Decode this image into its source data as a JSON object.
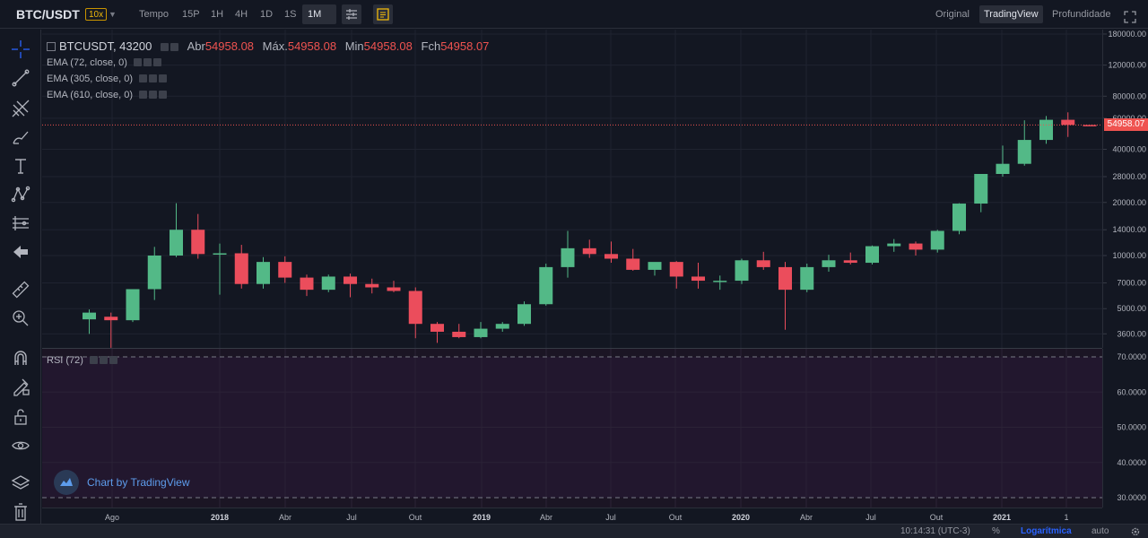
{
  "topbar": {
    "pair": "BTC/USDT",
    "leverage": "10x",
    "intervals": [
      "Tempo",
      "15P",
      "1H",
      "4H",
      "1D",
      "1S",
      "1M"
    ],
    "active_interval": "1M",
    "view_tabs": [
      "Original",
      "TradingView",
      "Profundidade"
    ],
    "active_view": "TradingView"
  },
  "legend": {
    "symbol": "BTCUSDT, 43200",
    "open_label": "Abr",
    "open_value": "54958.08",
    "high_label": "Máx.",
    "high_value": "54958.08",
    "low_label": "Min",
    "low_value": "54958.08",
    "close_label": "Fch",
    "close_value": "54958.07",
    "ema1": "EMA (72, close, 0)",
    "ema2": "EMA (305, close, 0)",
    "ema3": "EMA (610, close, 0)",
    "rsi": "RSI (72)"
  },
  "watermark": "Chart by TradingView",
  "last_price": "54958.07",
  "status": {
    "time": "10:14:31 (UTC-3)",
    "percent": "%",
    "log": "Logarítmica",
    "auto": "auto"
  },
  "colors": {
    "up": "#53b987",
    "down": "#eb4d5c",
    "accent": "#2962ff"
  },
  "chart_data": {
    "type": "candlestick",
    "scale": "log",
    "price_ticks": [
      "180000.00",
      "120000.00",
      "80000.00",
      "60000.00",
      "40000.00",
      "28000.00",
      "20000.00",
      "14000.00",
      "10000.00",
      "7000.00",
      "5000.00",
      "3600.00"
    ],
    "rsi_ticks": [
      "70.0000",
      "60.0000",
      "50.0000",
      "40.0000",
      "30.0000"
    ],
    "time_labels": [
      "Ago",
      "2018",
      "Abr",
      "Jul",
      "Out",
      "2019",
      "Abr",
      "Jul",
      "Out",
      "2020",
      "Abr",
      "Jul",
      "Out",
      "2021",
      "1"
    ],
    "bold_time_labels": [
      "2018",
      "2019",
      "2020",
      "2021"
    ],
    "candles": [
      {
        "o": 4350,
        "h": 4950,
        "l": 3600,
        "c": 4750
      },
      {
        "o": 4500,
        "h": 4750,
        "l": 3000,
        "c": 4300
      },
      {
        "o": 4300,
        "h": 6450,
        "l": 4200,
        "c": 6450
      },
      {
        "o": 6450,
        "h": 11200,
        "l": 5600,
        "c": 10000
      },
      {
        "o": 10000,
        "h": 19800,
        "l": 9800,
        "c": 14000
      },
      {
        "o": 14000,
        "h": 17200,
        "l": 9600,
        "c": 10200
      },
      {
        "o": 10200,
        "h": 11700,
        "l": 6000,
        "c": 10300
      },
      {
        "o": 10300,
        "h": 11500,
        "l": 6500,
        "c": 6900
      },
      {
        "o": 6900,
        "h": 9800,
        "l": 6500,
        "c": 9200
      },
      {
        "o": 9200,
        "h": 9900,
        "l": 7000,
        "c": 7500
      },
      {
        "o": 7500,
        "h": 7800,
        "l": 5900,
        "c": 6400
      },
      {
        "o": 6400,
        "h": 7800,
        "l": 6200,
        "c": 7600
      },
      {
        "o": 7600,
        "h": 7900,
        "l": 5800,
        "c": 6900
      },
      {
        "o": 6900,
        "h": 7400,
        "l": 6100,
        "c": 6600
      },
      {
        "o": 6600,
        "h": 7200,
        "l": 6200,
        "c": 6300
      },
      {
        "o": 6300,
        "h": 6600,
        "l": 3400,
        "c": 4100
      },
      {
        "o": 4100,
        "h": 4200,
        "l": 3200,
        "c": 3700
      },
      {
        "o": 3700,
        "h": 4100,
        "l": 3400,
        "c": 3450
      },
      {
        "o": 3450,
        "h": 4200,
        "l": 3400,
        "c": 3850
      },
      {
        "o": 3850,
        "h": 4200,
        "l": 3700,
        "c": 4100
      },
      {
        "o": 4100,
        "h": 5500,
        "l": 4000,
        "c": 5300
      },
      {
        "o": 5300,
        "h": 9000,
        "l": 5200,
        "c": 8600
      },
      {
        "o": 8600,
        "h": 13800,
        "l": 7500,
        "c": 11000
      },
      {
        "o": 11000,
        "h": 12300,
        "l": 9700,
        "c": 10200
      },
      {
        "o": 10200,
        "h": 12000,
        "l": 9100,
        "c": 9600
      },
      {
        "o": 9600,
        "h": 10900,
        "l": 8200,
        "c": 8300
      },
      {
        "o": 8300,
        "h": 9100,
        "l": 7700,
        "c": 9200
      },
      {
        "o": 9200,
        "h": 9300,
        "l": 6500,
        "c": 7600
      },
      {
        "o": 7600,
        "h": 9100,
        "l": 6500,
        "c": 7200
      },
      {
        "o": 7200,
        "h": 7700,
        "l": 6400,
        "c": 7200
      },
      {
        "o": 7200,
        "h": 9600,
        "l": 6900,
        "c": 9400
      },
      {
        "o": 9400,
        "h": 10500,
        "l": 8300,
        "c": 8600
      },
      {
        "o": 8600,
        "h": 9200,
        "l": 3800,
        "c": 6400
      },
      {
        "o": 6400,
        "h": 9000,
        "l": 6200,
        "c": 8600
      },
      {
        "o": 8600,
        "h": 10100,
        "l": 8100,
        "c": 9400
      },
      {
        "o": 9400,
        "h": 10400,
        "l": 8900,
        "c": 9100
      },
      {
        "o": 9100,
        "h": 11400,
        "l": 8900,
        "c": 11300
      },
      {
        "o": 11300,
        "h": 12400,
        "l": 10500,
        "c": 11700
      },
      {
        "o": 11700,
        "h": 12000,
        "l": 10000,
        "c": 10800
      },
      {
        "o": 10800,
        "h": 14000,
        "l": 10400,
        "c": 13800
      },
      {
        "o": 13800,
        "h": 19800,
        "l": 13200,
        "c": 19700
      },
      {
        "o": 19700,
        "h": 29000,
        "l": 17600,
        "c": 29000
      },
      {
        "o": 29000,
        "h": 42000,
        "l": 28000,
        "c": 33100
      },
      {
        "o": 33100,
        "h": 58400,
        "l": 32300,
        "c": 45200
      },
      {
        "o": 45200,
        "h": 61800,
        "l": 43000,
        "c": 58800
      },
      {
        "o": 58800,
        "h": 64800,
        "l": 47000,
        "c": 55000
      },
      {
        "o": 54958.08,
        "h": 54958.08,
        "l": 54958.08,
        "c": 54958.07
      }
    ]
  }
}
